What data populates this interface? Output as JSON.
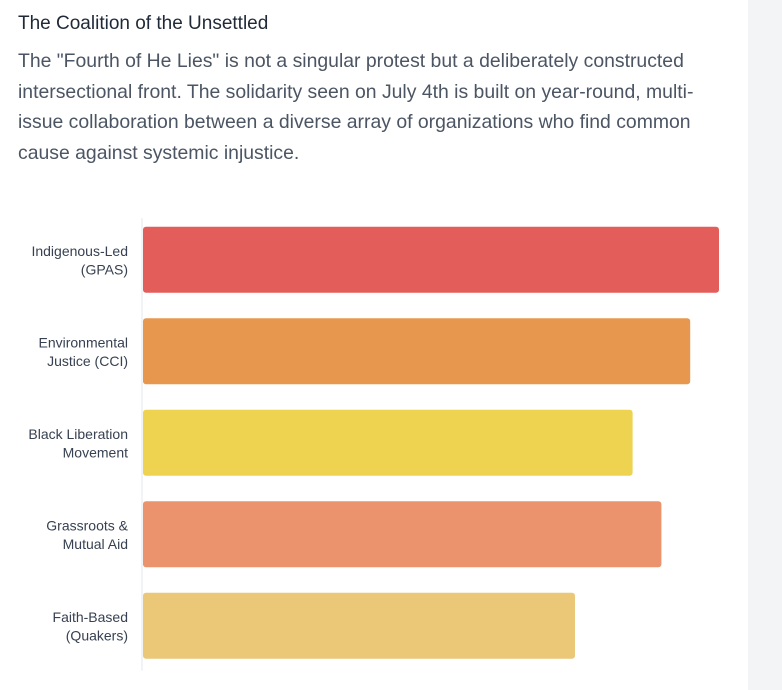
{
  "header": {
    "title": "The Coalition of the Unsettled",
    "description": "The \"Fourth of He Lies\" is not a singular protest but a deliberately constructed intersectional front. The solidarity seen on July 4th is built on year-round, multi-issue collaboration between a diverse array of organizations who find common cause against systemic injustice."
  },
  "chart_data": {
    "type": "bar",
    "orientation": "horizontal",
    "title": "",
    "xlabel": "",
    "ylabel": "",
    "categories": [
      [
        "Indigenous-Led",
        "(GPAS)"
      ],
      [
        "Environmental",
        "Justice (CCI)"
      ],
      [
        "Black Liberation",
        "Movement"
      ],
      [
        "Grassroots &",
        "Mutual Aid"
      ],
      [
        "Faith-Based",
        "(Quakers)"
      ]
    ],
    "values": [
      100,
      95,
      85,
      90,
      75
    ],
    "xlim": [
      0,
      100
    ],
    "colors": [
      "#e35d5a",
      "#e8974f",
      "#edd350",
      "#ea936c",
      "#ebc778"
    ],
    "grid": false,
    "legend": "none"
  }
}
